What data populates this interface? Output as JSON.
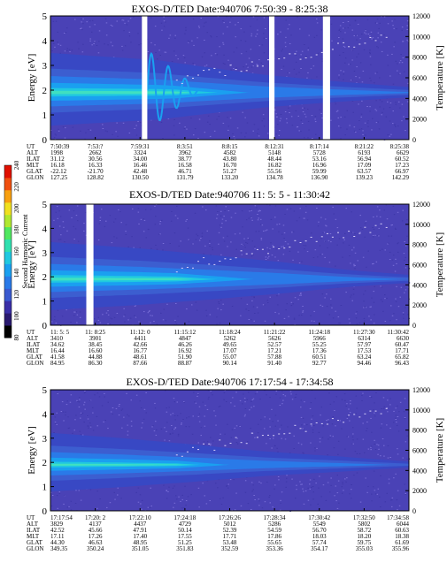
{
  "colors": {
    "background": "#4a42b6",
    "speckle": "#7a6fd8",
    "gap": "#ffffff",
    "scale": [
      "#000000",
      "#2a1a70",
      "#3a2fa8",
      "#3a5ad0",
      "#2a7ae8",
      "#1aa0f0",
      "#20c8e0",
      "#30e0b0",
      "#50e860",
      "#b0e830",
      "#f0e020",
      "#f8a010",
      "#f05010",
      "#e01000"
    ]
  },
  "colorbar": {
    "label": "Second Harmonic Current",
    "ticks": [
      "80",
      "100",
      "120",
      "140",
      "160",
      "180",
      "200",
      "220",
      "240"
    ]
  },
  "chart_data": [
    {
      "type": "heatmap",
      "title": "EXOS-D/TED   Date:940706   7:50:39 - 8:25:38",
      "ylabel": "Energy [eV]",
      "y2label": "Temperature [K]",
      "ylim": [
        0,
        5
      ],
      "y2lim": [
        0,
        12000
      ],
      "yticks": [
        "0",
        "1",
        "2",
        "3",
        "4",
        "5"
      ],
      "y2ticks": [
        "0",
        "2000",
        "4000",
        "6000",
        "8000",
        "10000",
        "12000"
      ],
      "band": [
        [
          0.0,
          2.0
        ],
        [
          0.3,
          1.9
        ],
        [
          0.45,
          1.7
        ],
        [
          0.6,
          1.5
        ],
        [
          0.75,
          1.35
        ],
        [
          1.0,
          1.1
        ]
      ],
      "gaps": [
        [
          0.255,
          0.27
        ],
        [
          0.61,
          0.625
        ],
        [
          0.76,
          0.78
        ]
      ],
      "ut_ticks": [
        "7:50:39",
        "7:53:?",
        "7:59:31",
        "8:3:51",
        "8:8:15",
        "8:12:31",
        "8:17:14",
        "8:21:22",
        "8:25:38"
      ],
      "ephemeris": {
        "labels": [
          "UT",
          "ALT",
          "ILAT",
          "MLT",
          "GLAT",
          "GLON"
        ],
        "rows": [
          [
            "1998",
            "2662",
            "3324",
            "3962",
            "4582",
            "5148",
            "5728",
            "6193",
            "6629"
          ],
          [
            "31.12",
            "30.56",
            "34.00",
            "38.77",
            "43.80",
            "48.44",
            "53.16",
            "56.94",
            "60.52"
          ],
          [
            "16.18",
            "16.33",
            "16.46",
            "16.58",
            "16.70",
            "16.82",
            "16.96",
            "17.09",
            "17.23"
          ],
          [
            "-22.12",
            "-21.70",
            "42.48",
            "46.71",
            "51.27",
            "55.56",
            "59.99",
            "63.57",
            "66.97"
          ],
          [
            "127.25",
            "128.82",
            "130.50",
            "131.79",
            "133.20",
            "134.78",
            "136.90",
            "139.23",
            "142.29"
          ]
        ]
      }
    },
    {
      "type": "heatmap",
      "title": "EXOS-D/TED   Date:940706   11: 5: 5 - 11:30:42",
      "ylabel": "Energy [eV]",
      "y2label": "Temperature [K]",
      "ylim": [
        0,
        5
      ],
      "y2lim": [
        0,
        12000
      ],
      "yticks": [
        "0",
        "1",
        "2",
        "3",
        "4",
        "5"
      ],
      "y2ticks": [
        "0",
        "2000",
        "4000",
        "6000",
        "8000",
        "10000",
        "12000"
      ],
      "band": [
        [
          0.0,
          1.95
        ],
        [
          0.25,
          1.85
        ],
        [
          0.45,
          1.7
        ],
        [
          0.65,
          1.5
        ],
        [
          0.82,
          1.25
        ],
        [
          1.0,
          1.05
        ]
      ],
      "gaps": [
        [
          0.1,
          0.12
        ]
      ],
      "ut_ticks": [
        "11: 5: 5",
        "11: 8:25",
        "11:12: 0",
        "11:15:12",
        "11:18:24",
        "11:21:22",
        "11:24:18",
        "11:27:30",
        "11:30:42"
      ],
      "ephemeris": {
        "labels": [
          "UT",
          "ALT",
          "ILAT",
          "MLT",
          "GLAT",
          "GLON"
        ],
        "rows": [
          [
            "3410",
            "3901",
            "4411",
            "4847",
            "5262",
            "5626",
            "5966",
            "6314",
            "6630"
          ],
          [
            "34.62",
            "38.45",
            "42.66",
            "46.26",
            "49.65",
            "52.57",
            "55.25",
            "57.97",
            "60.47"
          ],
          [
            "16.44",
            "16.60",
            "16.77",
            "16.92",
            "17.07",
            "17.21",
            "17.36",
            "17.53",
            "17.71"
          ],
          [
            "41.58",
            "44.88",
            "48.61",
            "51.90",
            "55.07",
            "57.88",
            "60.51",
            "63.24",
            "65.82"
          ],
          [
            "84.95",
            "86.30",
            "87.66",
            "88.87",
            "90.14",
            "91.40",
            "92.77",
            "94.46",
            "96.43"
          ]
        ]
      }
    },
    {
      "type": "heatmap",
      "title": "EXOS-D/TED   Date:940706   17:17:54 - 17:34:58",
      "ylabel": "Energy [eV]",
      "y2label": "Temperature [K]",
      "ylim": [
        0,
        5
      ],
      "y2lim": [
        0,
        12000
      ],
      "yticks": [
        "0",
        "1",
        "2",
        "3",
        "4",
        "5"
      ],
      "y2ticks": [
        "0",
        "2000",
        "4000",
        "6000",
        "8000",
        "10000",
        "12000"
      ],
      "band": [
        [
          0.0,
          1.8
        ],
        [
          0.2,
          1.7
        ],
        [
          0.4,
          1.55
        ],
        [
          0.6,
          1.35
        ],
        [
          0.8,
          1.2
        ],
        [
          1.0,
          1.0
        ]
      ],
      "gaps": [],
      "ut_ticks": [
        "17:17:54",
        "17:20: 2",
        "17:22:10",
        "17:24:18",
        "17:26:26",
        "17:28:34",
        "17:30:42",
        "17:32:50",
        "17:34:58"
      ],
      "ephemeris": {
        "labels": [
          "UT",
          "ALT",
          "ILAT",
          "MLT",
          "GLAT",
          "GLON"
        ],
        "rows": [
          [
            "3829",
            "4137",
            "4437",
            "4729",
            "5012",
            "5286",
            "5549",
            "5802",
            "6044"
          ],
          [
            "42.52",
            "45.66",
            "47.91",
            "50.14",
            "52.39",
            "54.59",
            "56.70",
            "58.72",
            "60.63"
          ],
          [
            "17.11",
            "17.26",
            "17.40",
            "17.55",
            "17.71",
            "17.86",
            "18.03",
            "18.20",
            "18.38"
          ],
          [
            "44.30",
            "46.63",
            "48.95",
            "51.25",
            "53.48",
            "55.65",
            "57.74",
            "59.75",
            "61.69"
          ],
          [
            "349.35",
            "350.24",
            "351.05",
            "351.83",
            "352.59",
            "353.36",
            "354.17",
            "355.03",
            "355.96"
          ]
        ]
      }
    }
  ]
}
